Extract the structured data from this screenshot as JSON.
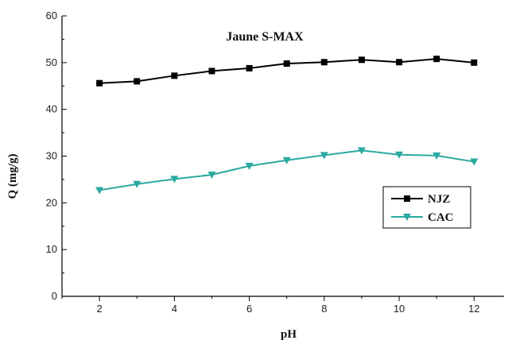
{
  "chart_data": {
    "type": "line",
    "title": "Jaune S-MAX",
    "xlabel": "pH",
    "ylabel": "Q (mg/g)",
    "xlim": [
      1,
      12.8
    ],
    "ylim": [
      0,
      60
    ],
    "xticks": [
      2,
      4,
      6,
      8,
      10,
      12
    ],
    "yticks": [
      0,
      10,
      20,
      30,
      40,
      50,
      60
    ],
    "grid": false,
    "legend_position": "right-middle",
    "x": [
      2,
      3,
      4,
      5,
      6,
      7,
      8,
      9,
      10,
      11,
      12
    ],
    "series": [
      {
        "name": "NJZ",
        "marker": "square",
        "color": "#000000",
        "values": [
          45.6,
          46.0,
          47.2,
          48.2,
          48.8,
          49.8,
          50.1,
          50.6,
          50.1,
          50.8,
          50.0
        ]
      },
      {
        "name": "CAC",
        "marker": "triangle-down",
        "color": "#2aa9a0",
        "values": [
          22.7,
          24.0,
          25.1,
          26.0,
          27.9,
          29.1,
          30.2,
          31.2,
          30.3,
          30.1,
          28.8
        ]
      }
    ]
  }
}
